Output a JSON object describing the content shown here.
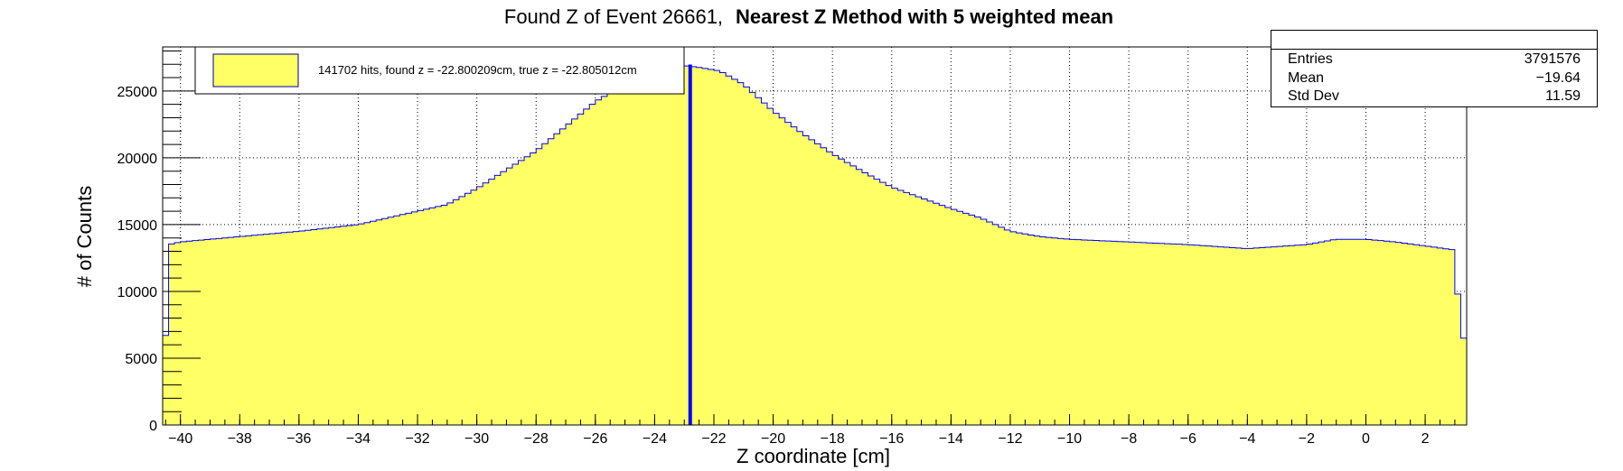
{
  "title_plain": "Found Z of Event 26661,",
  "title_bold": "Nearest Z Method with 5 weighted mean",
  "stats": {
    "entries_label": "Entries",
    "entries_value": "3791576",
    "mean_label": "Mean",
    "mean_value": "−19.64",
    "stddev_label": "Std Dev",
    "stddev_value": "11.59"
  },
  "legend": {
    "text": "141702 hits, found z = -22.800209cm, true z = -22.805012cm",
    "fill_color": "#ffff66"
  },
  "colors": {
    "fill": "#ffff66",
    "line": "#0000ff",
    "marker": "#0000ff"
  },
  "chart_data": {
    "type": "area",
    "title": "Found Z of Event 26661, Nearest Z Method with 5 weighted mean",
    "xlabel": "Z coordinate [cm]",
    "ylabel": "# of Counts",
    "xlim": [
      -40.6,
      3.4
    ],
    "ylim": [
      0,
      28300
    ],
    "grid": true,
    "xticks": [
      -40,
      -38,
      -36,
      -34,
      -32,
      -30,
      -28,
      -26,
      -24,
      -22,
      -20,
      -18,
      -16,
      -14,
      -12,
      -10,
      -8,
      -6,
      -4,
      -2,
      0,
      2
    ],
    "xtick_labels": [
      "−40",
      "−38",
      "−36",
      "−34",
      "−32",
      "−30",
      "−28",
      "−26",
      "−24",
      "−22",
      "−20",
      "−18",
      "−16",
      "−14",
      "−12",
      "−10",
      "−8",
      "−6",
      "−4",
      "−2",
      "0",
      "2"
    ],
    "yticks": [
      0,
      5000,
      10000,
      15000,
      20000,
      25000
    ],
    "ytick_labels": [
      "0",
      "5000",
      "10000",
      "15000",
      "20000",
      "25000"
    ],
    "bin_width": 0.2,
    "profile": [
      [
        -40.6,
        6700
      ],
      [
        -40.4,
        13500
      ],
      [
        -40.0,
        13700
      ],
      [
        -38.0,
        14100
      ],
      [
        -36.0,
        14500
      ],
      [
        -34.0,
        15000
      ],
      [
        -32.0,
        16000
      ],
      [
        -31.0,
        16500
      ],
      [
        -30.0,
        17700
      ],
      [
        -28.0,
        20500
      ],
      [
        -26.0,
        24200
      ],
      [
        -24.0,
        26800
      ],
      [
        -23.0,
        26900
      ],
      [
        -22.6,
        26800
      ],
      [
        -21.8,
        26500
      ],
      [
        -21.0,
        25500
      ],
      [
        -20.0,
        23500
      ],
      [
        -19.0,
        21800
      ],
      [
        -18.0,
        20300
      ],
      [
        -17.0,
        19000
      ],
      [
        -16.0,
        17800
      ],
      [
        -15.0,
        17000
      ],
      [
        -14.0,
        16200
      ],
      [
        -13.0,
        15500
      ],
      [
        -12.0,
        14500
      ],
      [
        -11.0,
        14100
      ],
      [
        -10.0,
        13900
      ],
      [
        -8.0,
        13700
      ],
      [
        -6.0,
        13500
      ],
      [
        -4.0,
        13200
      ],
      [
        -2.0,
        13500
      ],
      [
        -1.0,
        13900
      ],
      [
        0.0,
        13900
      ],
      [
        1.0,
        13700
      ],
      [
        2.0,
        13400
      ],
      [
        3.0,
        13100
      ],
      [
        3.2,
        6500
      ],
      [
        3.4,
        6500
      ]
    ],
    "marker_z": -22.8,
    "stats": {
      "entries": 3791576,
      "mean": -19.64,
      "std_dev": 11.59
    }
  }
}
